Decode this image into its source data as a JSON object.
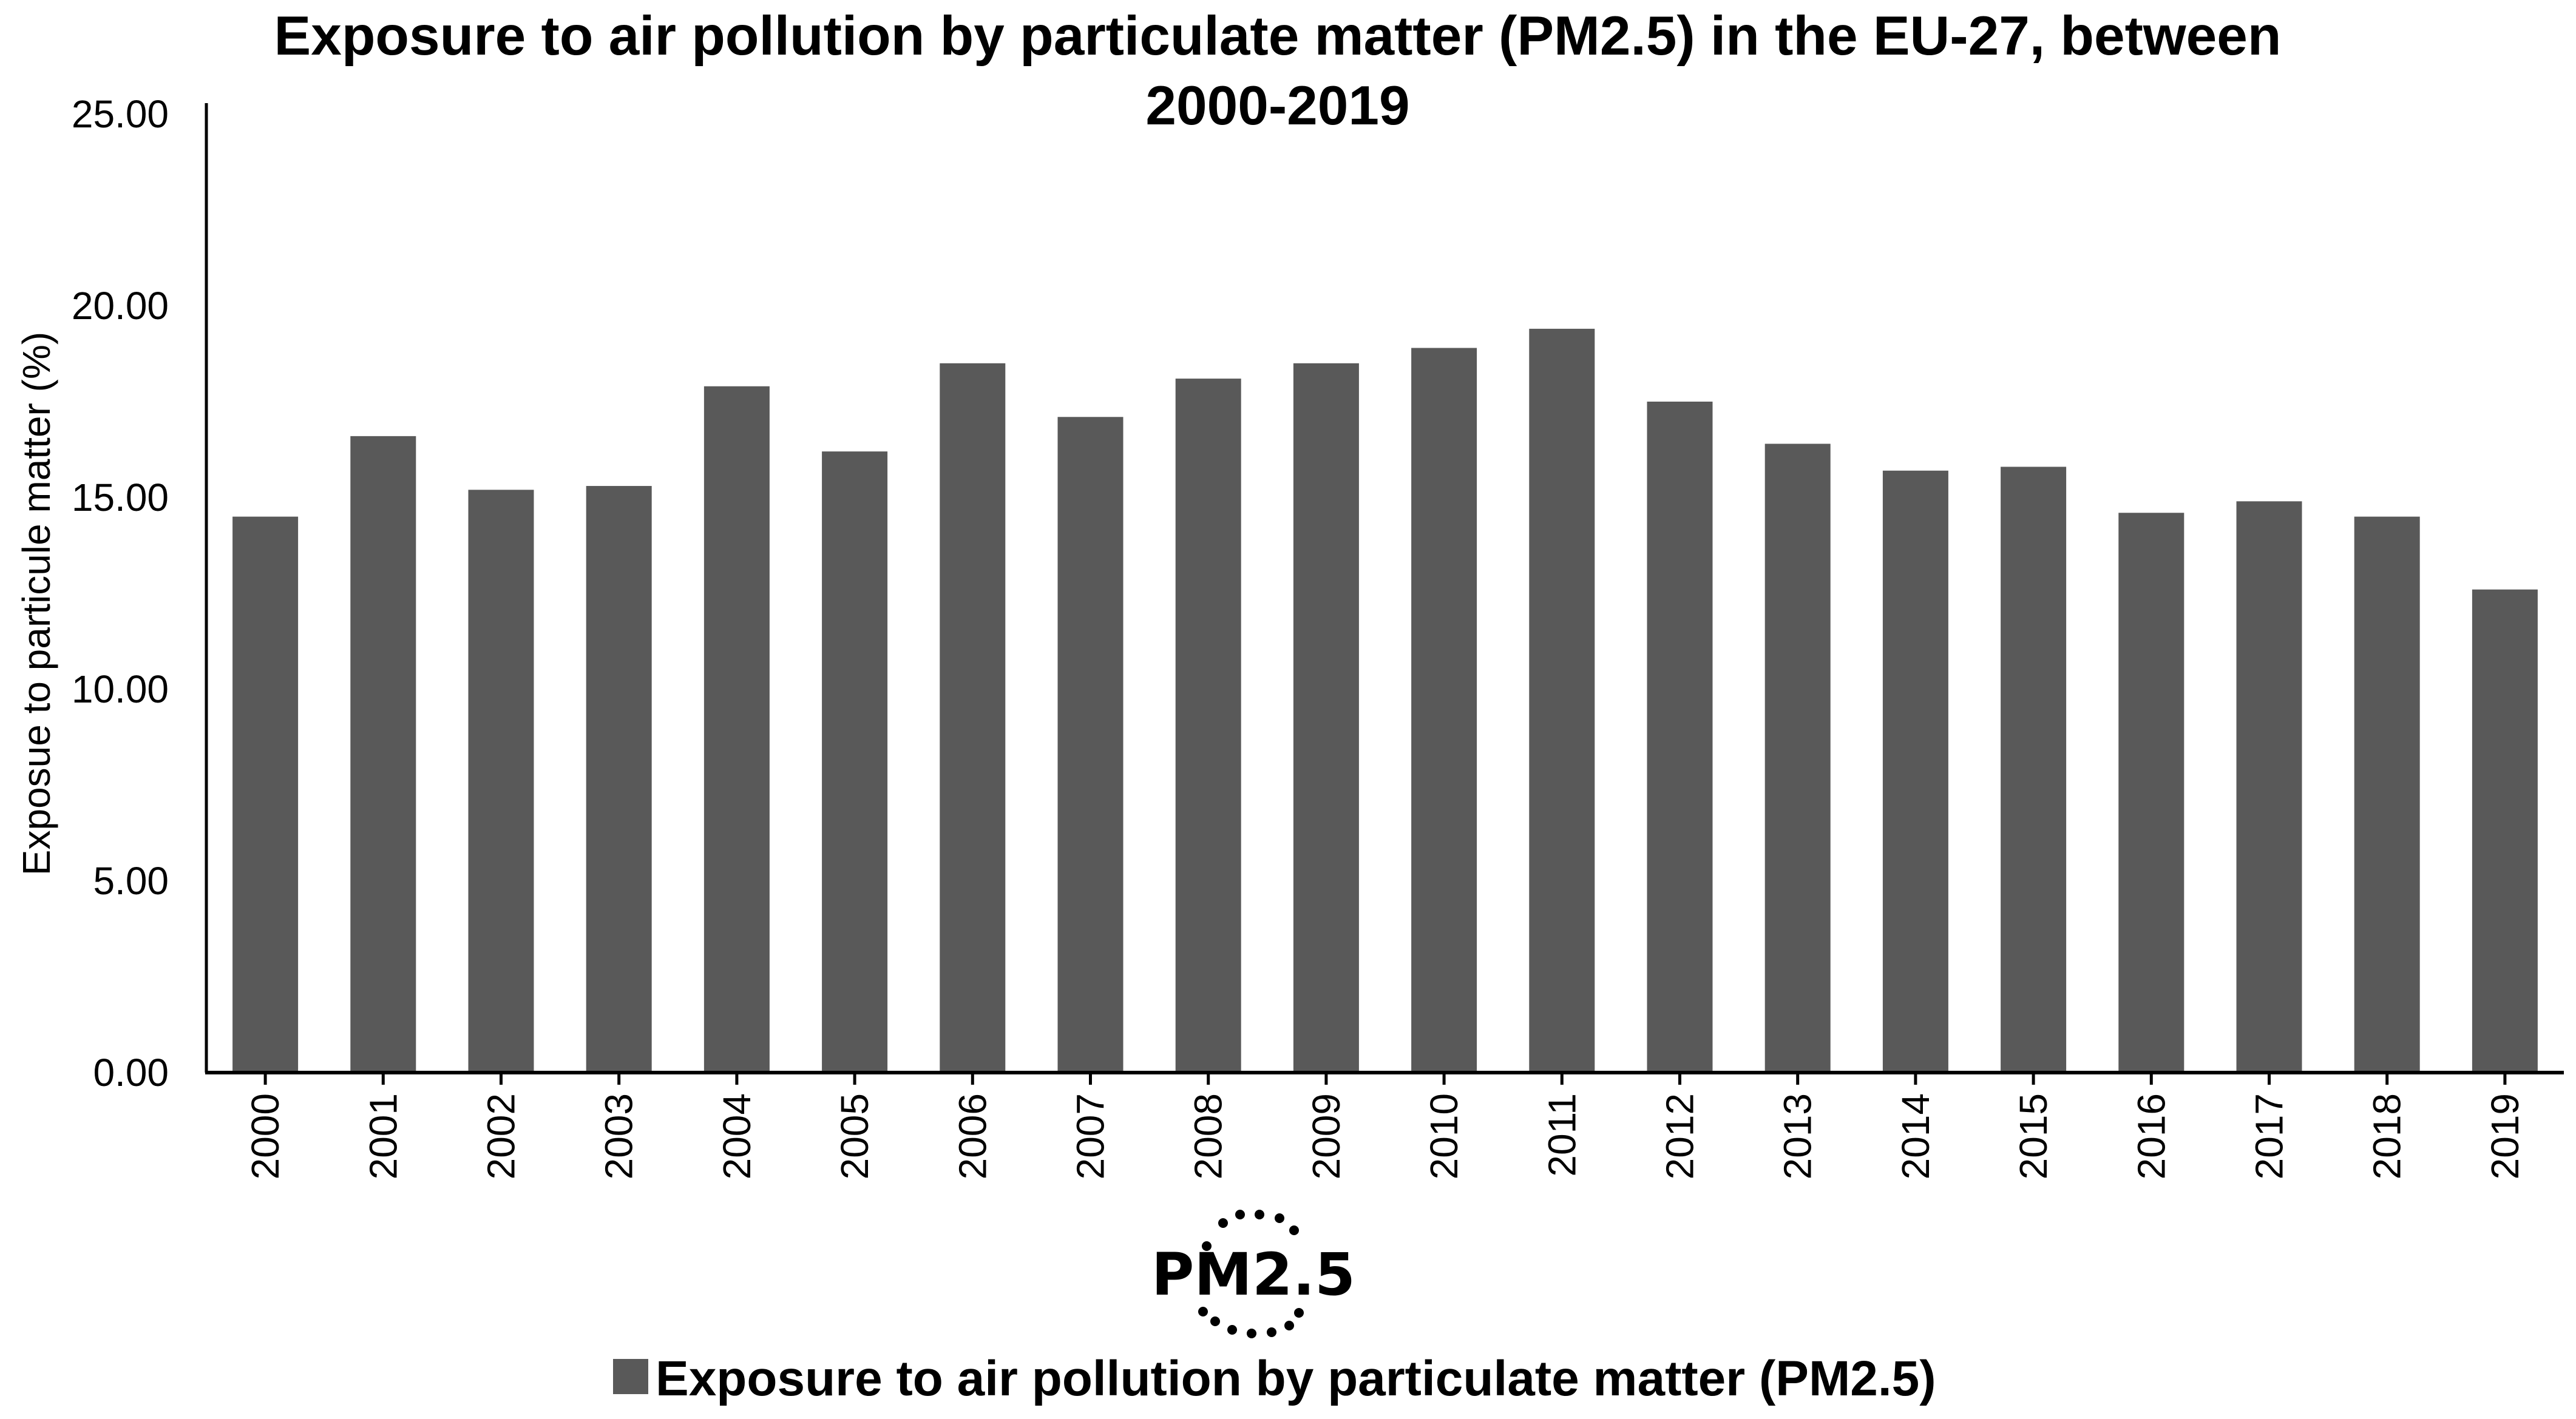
{
  "chart_data": {
    "type": "bar",
    "title_lines": [
      "Exposure to air pollution by particulate matter (PM2.5) in the EU-27, between",
      "2000-2019"
    ],
    "ylabel": "Exposue to particule matter (%)",
    "xlabel": "",
    "ylim": [
      0,
      25
    ],
    "y_ticks": [
      "0.00",
      "5.00",
      "10.00",
      "15.00",
      "20.00",
      "25.00"
    ],
    "grid": false,
    "legend_position": "bottom",
    "categories": [
      "2000",
      "2001",
      "2002",
      "2003",
      "2004",
      "2005",
      "2006",
      "2007",
      "2008",
      "2009",
      "2010",
      "2011",
      "2012",
      "2013",
      "2014",
      "2015",
      "2016",
      "2017",
      "2018",
      "2019"
    ],
    "series": [
      {
        "name": "Exposure to air pollution by particulate matter (PM2.5)",
        "color": "#595959",
        "values": [
          14.5,
          16.6,
          15.2,
          15.3,
          17.9,
          16.2,
          18.5,
          17.1,
          18.1,
          18.5,
          18.9,
          19.4,
          17.5,
          16.4,
          15.7,
          15.8,
          14.6,
          14.9,
          14.5,
          12.6
        ]
      }
    ]
  },
  "logo": {
    "label": "PM2.5",
    "icon": "pm25-particle-icon"
  }
}
